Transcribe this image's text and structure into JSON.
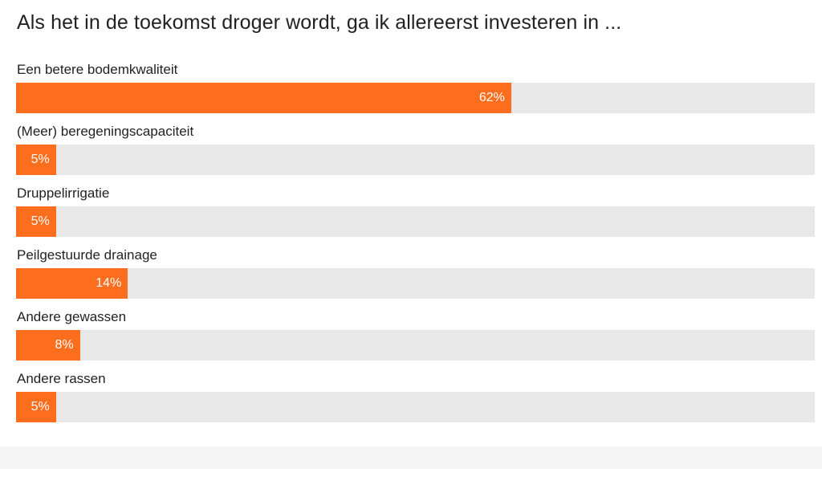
{
  "poll": {
    "title": "Als het in de toekomst droger wordt, ga ik allereerst investeren in ..."
  },
  "colors": {
    "bar_fill": "#fc6d1e",
    "track": "#e8e8e8",
    "text": "#222222"
  },
  "chart_data": {
    "type": "bar",
    "orientation": "horizontal",
    "title": "Als het in de toekomst droger wordt, ga ik allereerst investeren in ...",
    "categories": [
      "Een betere bodemkwaliteit",
      "(Meer) beregeningscapaciteit",
      "Druppelirrigatie",
      "Peilgestuurde drainage",
      "Andere gewassen",
      "Andere rassen"
    ],
    "values": [
      62,
      5,
      5,
      14,
      8,
      5
    ],
    "value_labels": [
      "62%",
      "5%",
      "5%",
      "14%",
      "8%",
      "5%"
    ],
    "xlim": [
      0,
      100
    ],
    "grid": false
  }
}
